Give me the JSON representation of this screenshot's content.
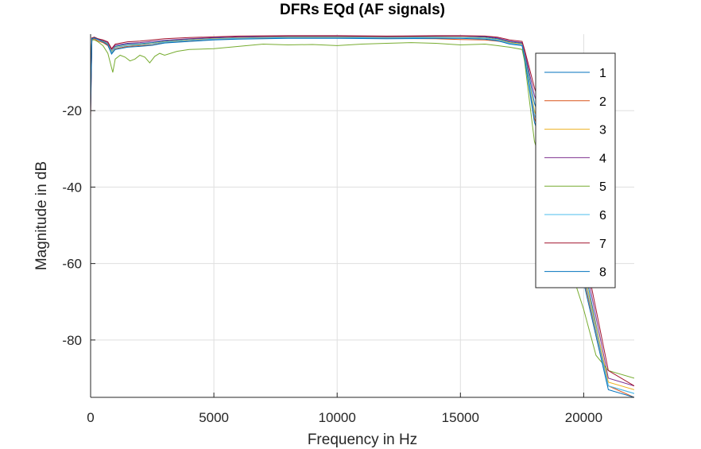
{
  "chart_data": {
    "type": "line",
    "title": "DFRs EQd (AF signals)",
    "xlabel": "Frequency in Hz",
    "ylabel": "Magnitude in dB",
    "xlim": [
      0,
      22050
    ],
    "ylim": [
      -95,
      0
    ],
    "xticks": [
      0,
      5000,
      10000,
      15000,
      20000
    ],
    "xtick_labels": [
      "0",
      "5000",
      "10000",
      "15000",
      "20000"
    ],
    "yticks": [
      -80,
      -60,
      -40,
      -20
    ],
    "ytick_labels": [
      "-80",
      "-60",
      "-40",
      "-20"
    ],
    "grid": true,
    "legend_position": "top-right",
    "series": [
      {
        "name": "1",
        "color": "#0072BD",
        "x": [
          0,
          50,
          150,
          300,
          500,
          700,
          850,
          1000,
          1500,
          2000,
          2500,
          3000,
          4000,
          5000,
          6000,
          8000,
          10000,
          12000,
          14000,
          15000,
          16000,
          16500,
          17000,
          17500,
          17600,
          18000,
          19000,
          20000,
          21000,
          22050
        ],
        "y": [
          -17,
          -1,
          -0.8,
          -1.2,
          -1.8,
          -2.5,
          -4.5,
          -3.2,
          -2.6,
          -2.5,
          -2.2,
          -1.8,
          -1.3,
          -1.0,
          -0.8,
          -0.6,
          -0.6,
          -0.7,
          -0.6,
          -0.5,
          -0.8,
          -1.2,
          -2.0,
          -2.4,
          -5,
          -18,
          -38,
          -60,
          -92,
          -94
        ]
      },
      {
        "name": "2",
        "color": "#D95319",
        "x": [
          0,
          50,
          150,
          300,
          500,
          700,
          850,
          1000,
          1500,
          2000,
          2500,
          3000,
          4000,
          5000,
          6000,
          8000,
          10000,
          12000,
          14000,
          15000,
          16000,
          16500,
          17000,
          17500,
          17600,
          18000,
          19000,
          20000,
          21000,
          22050
        ],
        "y": [
          -18,
          -1.5,
          -1.2,
          -1.8,
          -2.2,
          -3.0,
          -5.0,
          -3.8,
          -3.2,
          -3.0,
          -2.8,
          -2.2,
          -1.8,
          -1.4,
          -1.2,
          -1.0,
          -1.0,
          -1.1,
          -1.2,
          -1.4,
          -1.5,
          -1.8,
          -2.3,
          -2.8,
          -6,
          -22,
          -42,
          -64,
          -92,
          -95
        ]
      },
      {
        "name": "3",
        "color": "#EDB120",
        "x": [
          0,
          50,
          150,
          300,
          500,
          700,
          850,
          1000,
          1500,
          2000,
          2500,
          3000,
          4000,
          5000,
          6000,
          8000,
          10000,
          12000,
          14000,
          15000,
          16000,
          16500,
          17000,
          17500,
          17600,
          18000,
          19000,
          20000,
          21000,
          22050
        ],
        "y": [
          -16,
          -1.2,
          -1.0,
          -1.4,
          -1.9,
          -2.6,
          -4.6,
          -3.4,
          -2.9,
          -2.7,
          -2.4,
          -2.0,
          -1.5,
          -1.2,
          -1.0,
          -0.8,
          -0.8,
          -0.9,
          -0.8,
          -0.8,
          -1.0,
          -1.4,
          -2.2,
          -2.6,
          -5.5,
          -20,
          -40,
          -62,
          -91,
          -93
        ]
      },
      {
        "name": "4",
        "color": "#7E2F8E",
        "x": [
          0,
          50,
          150,
          300,
          500,
          700,
          850,
          1000,
          1500,
          2000,
          2500,
          3000,
          4000,
          5000,
          6000,
          8000,
          10000,
          12000,
          14000,
          15000,
          16000,
          16500,
          17000,
          17500,
          17600,
          18000,
          19000,
          20000,
          21000,
          22050
        ],
        "y": [
          -19,
          -1.1,
          -0.9,
          -1.3,
          -1.6,
          -2.2,
          -4.0,
          -2.9,
          -2.4,
          -2.2,
          -1.9,
          -1.6,
          -1.2,
          -0.9,
          -0.7,
          -0.5,
          -0.5,
          -0.6,
          -0.5,
          -0.5,
          -0.6,
          -1.0,
          -1.8,
          -2.2,
          -4.5,
          -16,
          -36,
          -58,
          -90,
          -92
        ]
      },
      {
        "name": "5",
        "color": "#77AC30",
        "x": [
          0,
          50,
          150,
          300,
          500,
          700,
          800,
          900,
          1000,
          1200,
          1400,
          1600,
          1800,
          2000,
          2200,
          2400,
          2600,
          2800,
          3000,
          3500,
          4000,
          5000,
          6000,
          7000,
          8000,
          9000,
          10000,
          11000,
          12000,
          13000,
          14000,
          15000,
          16000,
          16500,
          17000,
          17500,
          17600,
          18000,
          19000,
          19500,
          20000,
          20500,
          21000,
          22050
        ],
        "y": [
          -14,
          -1.5,
          -1.5,
          -2.0,
          -3.0,
          -5.0,
          -7.5,
          -10.0,
          -6.5,
          -5.5,
          -6.0,
          -7.0,
          -6.5,
          -5.5,
          -6.0,
          -7.5,
          -5.8,
          -5.0,
          -5.5,
          -4.5,
          -4.0,
          -3.8,
          -3.2,
          -2.6,
          -2.8,
          -2.7,
          -3.0,
          -2.6,
          -2.4,
          -2.2,
          -2.4,
          -2.8,
          -2.6,
          -3.0,
          -3.4,
          -4.0,
          -7,
          -28,
          -50,
          -62,
          -72,
          -84,
          -88,
          -90
        ]
      },
      {
        "name": "6",
        "color": "#4DBEEE",
        "x": [
          0,
          50,
          150,
          300,
          500,
          700,
          850,
          1000,
          1500,
          2000,
          2500,
          3000,
          4000,
          5000,
          6000,
          8000,
          10000,
          12000,
          14000,
          15000,
          16000,
          16500,
          17000,
          17500,
          17600,
          18000,
          19000,
          20000,
          21000,
          22050
        ],
        "y": [
          -15,
          -1.3,
          -1.0,
          -1.5,
          -2.0,
          -2.7,
          -4.8,
          -3.5,
          -3.0,
          -2.8,
          -2.5,
          -2.1,
          -1.6,
          -1.3,
          -1.1,
          -0.9,
          -0.9,
          -1.0,
          -0.9,
          -0.9,
          -1.1,
          -1.5,
          -2.4,
          -2.8,
          -5.8,
          -21,
          -41,
          -63,
          -92,
          -94
        ]
      },
      {
        "name": "7",
        "color": "#A2142F",
        "x": [
          0,
          50,
          150,
          300,
          500,
          700,
          850,
          1000,
          1500,
          2000,
          2500,
          3000,
          4000,
          5000,
          6000,
          8000,
          10000,
          12000,
          14000,
          15000,
          16000,
          16500,
          17000,
          17500,
          17600,
          18000,
          19000,
          20000,
          21000,
          22050
        ],
        "y": [
          -22,
          -1.0,
          -0.8,
          -1.2,
          -1.5,
          -2.0,
          -3.8,
          -2.6,
          -2.0,
          -1.8,
          -1.5,
          -1.2,
          -0.9,
          -0.7,
          -0.5,
          -0.4,
          -0.4,
          -0.5,
          -0.4,
          -0.4,
          -0.5,
          -0.8,
          -1.5,
          -1.9,
          -4.0,
          -14,
          -34,
          -56,
          -88,
          -92
        ]
      },
      {
        "name": "8",
        "color": "#0072BD",
        "x": [
          0,
          50,
          150,
          300,
          500,
          700,
          850,
          1000,
          1500,
          2000,
          2500,
          3000,
          4000,
          5000,
          6000,
          8000,
          10000,
          12000,
          14000,
          15000,
          16000,
          16500,
          17000,
          17500,
          17600,
          18000,
          19000,
          20000,
          21000,
          22050
        ],
        "y": [
          -20,
          -1.2,
          -1.0,
          -1.4,
          -2.0,
          -2.8,
          -5.2,
          -4.0,
          -3.4,
          -3.2,
          -2.9,
          -2.3,
          -1.9,
          -1.5,
          -1.3,
          -1.1,
          -1.1,
          -1.2,
          -1.1,
          -1.1,
          -1.3,
          -1.7,
          -2.6,
          -3.0,
          -6.2,
          -23,
          -43,
          -65,
          -93,
          -95
        ]
      }
    ]
  }
}
